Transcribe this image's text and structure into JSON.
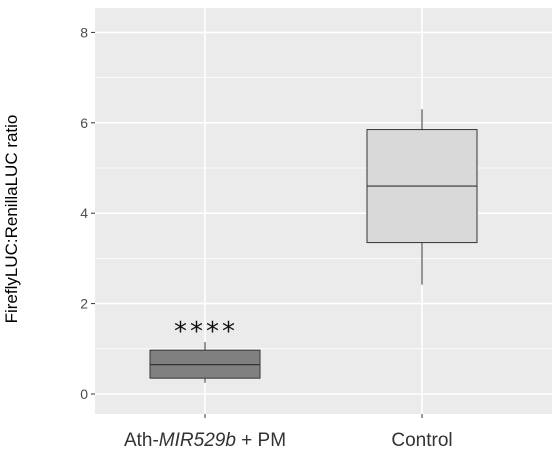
{
  "chart_data": {
    "type": "box",
    "ylabel": "FireflyLUC:RenillaLUC ratio",
    "xlabel": "",
    "title": "",
    "ylim": [
      -0.2,
      8.4
    ],
    "yticks": [
      0,
      2,
      4,
      6,
      8
    ],
    "grid": true,
    "legend": "none",
    "panel_color": "#ebebeb",
    "grid_color": "#ffffff",
    "categories": [
      {
        "label_prefix": "Ath-",
        "label_italic": "MIR529b",
        "label_suffix": " + PM",
        "min": 0.25,
        "q1": 0.35,
        "median": 0.65,
        "q3": 0.97,
        "max": 1.15,
        "fill": "#808080",
        "annotation": "****"
      },
      {
        "label_prefix": "Control",
        "label_italic": "",
        "label_suffix": "",
        "min": 2.42,
        "q1": 3.35,
        "median": 4.6,
        "q3": 5.85,
        "max": 6.3,
        "fill": "#d9d9d9",
        "annotation": ""
      }
    ]
  }
}
